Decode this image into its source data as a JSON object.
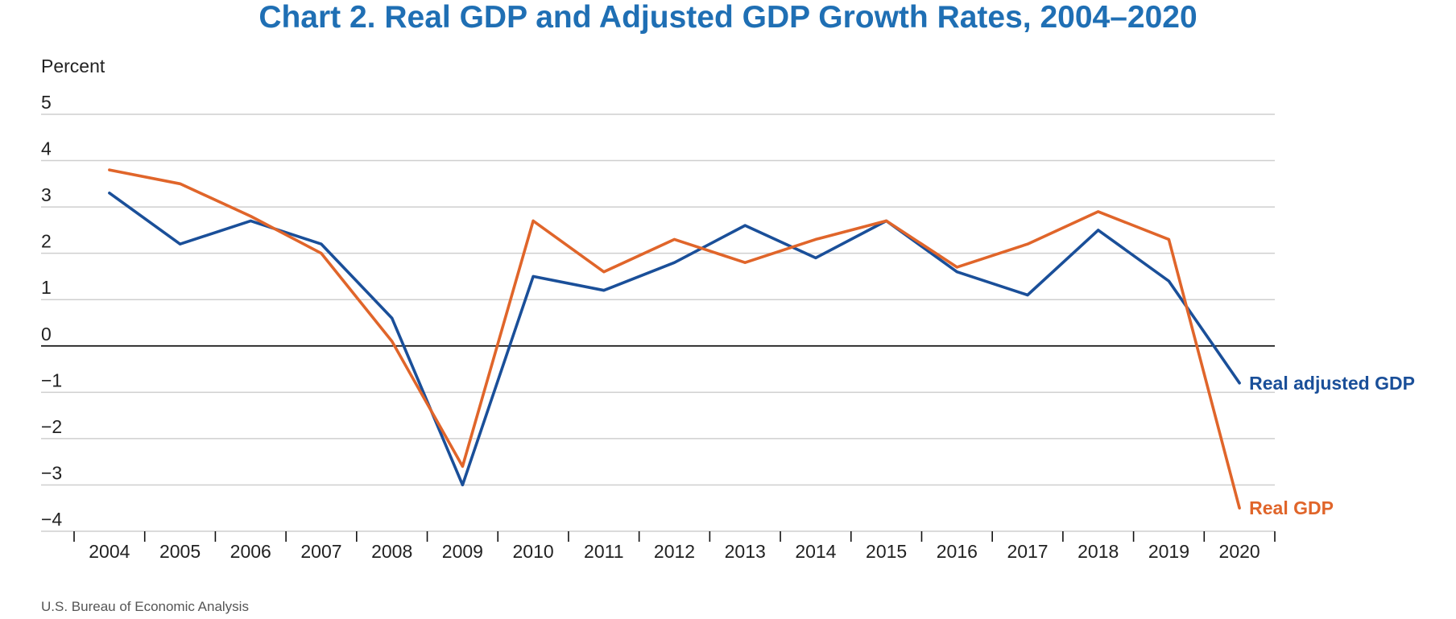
{
  "title": "Chart 2. Real GDP and Adjusted GDP Growth Rates, 2004–2020",
  "source": "U.S. Bureau of Economic Analysis",
  "chart_data": {
    "type": "line",
    "title": "Chart 2. Real GDP and Adjusted GDP Growth Rates, 2004–2020",
    "ylabel": "Percent",
    "xlabel": "",
    "ylim": [
      -4,
      5
    ],
    "yticks": [
      5,
      4,
      3,
      2,
      1,
      0,
      -1,
      -2,
      -3,
      -4
    ],
    "ytick_labels": [
      "5",
      "4",
      "3",
      "2",
      "1",
      "0",
      "−1",
      "−2",
      "−3",
      "−4"
    ],
    "grid": true,
    "legend": "inline labels at line ends",
    "categories": [
      "2004",
      "2005",
      "2006",
      "2007",
      "2008",
      "2009",
      "2010",
      "2011",
      "2012",
      "2013",
      "2014",
      "2015",
      "2016",
      "2017",
      "2018",
      "2019",
      "2020"
    ],
    "series": [
      {
        "name": "Real adjusted GDP",
        "color": "#1a4f99",
        "values": [
          3.3,
          2.2,
          2.7,
          2.2,
          0.6,
          -3.0,
          1.5,
          1.2,
          1.8,
          2.6,
          1.9,
          2.7,
          1.6,
          1.1,
          2.5,
          1.4,
          -0.8
        ]
      },
      {
        "name": "Real GDP",
        "color": "#e0652a",
        "values": [
          3.8,
          3.5,
          2.8,
          2.0,
          0.1,
          -2.6,
          2.7,
          1.6,
          2.3,
          1.8,
          2.3,
          2.7,
          1.7,
          2.2,
          2.9,
          2.3,
          -3.5
        ]
      }
    ]
  }
}
